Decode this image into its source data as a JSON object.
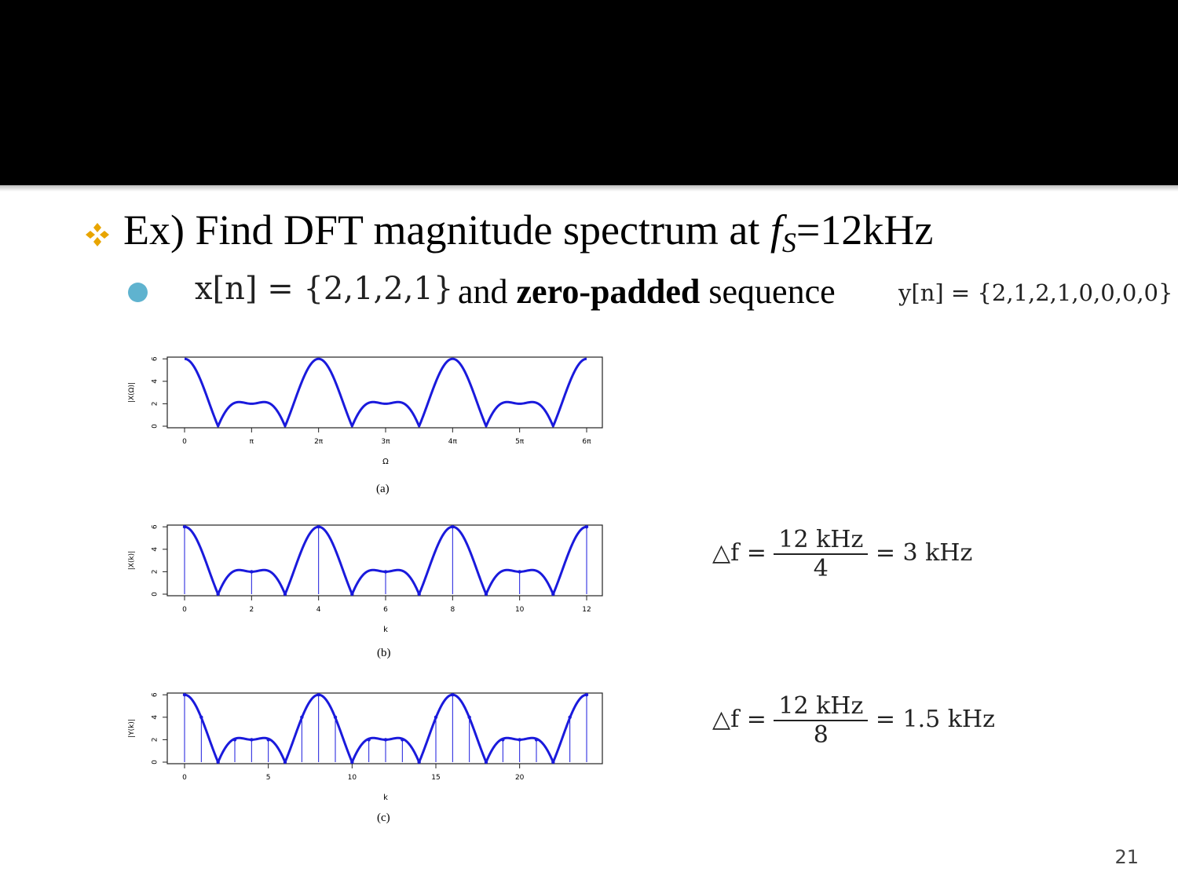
{
  "slide": {
    "page_number": "21",
    "bullet1": {
      "prefix": "Ex) Find DFT magnitude spectrum at ",
      "symbol": "f",
      "subscript": "S",
      "suffix": "=12kHz"
    },
    "bullet2": {
      "x_seq": "x[n] = {2,1,2,1}",
      "and": "and ",
      "bold": "zero-padded",
      "sequence": " sequence",
      "y_seq": "y[n] = {2,1,2,1,0,0,0,0}"
    },
    "eq1": {
      "lhs": "△f =",
      "num": "12 kHz",
      "den": "4",
      "rhs": "= 3 kHz"
    },
    "eq2": {
      "lhs": "△f =",
      "num": "12 kHz",
      "den": "8",
      "rhs": "= 1.5 kHz"
    }
  },
  "colors": {
    "curve": "#1a1adc",
    "accent_diamond": "#e8a500",
    "bullet_circle": "#5fb3cf"
  },
  "chart_data": [
    {
      "type": "line",
      "caption": "(a)",
      "xlabel": "Ω",
      "ylabel": "|X(Ω)|",
      "xticks": [
        "0",
        "π",
        "2π",
        "3π",
        "4π",
        "5π",
        "6π"
      ],
      "yticks": [
        "0",
        "2",
        "4",
        "6"
      ],
      "ylim": [
        0,
        6
      ],
      "xlim_periods": 3,
      "signal": [
        2,
        1,
        2,
        1
      ],
      "N": 4,
      "stems": false
    },
    {
      "type": "line",
      "caption": "(b)",
      "xlabel": "k",
      "ylabel": "|X(k)|",
      "xticks": [
        "0",
        "2",
        "4",
        "6",
        "8",
        "10",
        "12"
      ],
      "yticks": [
        "0",
        "2",
        "4",
        "6"
      ],
      "ylim": [
        0,
        6
      ],
      "k_max": 12,
      "N": 4,
      "signal": [
        2,
        1,
        2,
        1
      ],
      "stems": true,
      "values": [
        6,
        0,
        2,
        0,
        6,
        0,
        2,
        0,
        6,
        0,
        2,
        0,
        6
      ]
    },
    {
      "type": "line",
      "caption": "(c)",
      "xlabel": "k",
      "ylabel": "|Y(k)|",
      "xticks": [
        "0",
        "5",
        "10",
        "15",
        "20"
      ],
      "yticks": [
        "0",
        "2",
        "4",
        "6"
      ],
      "ylim": [
        0,
        6
      ],
      "k_max": 24,
      "N": 8,
      "signal": [
        2,
        1,
        2,
        1,
        0,
        0,
        0,
        0
      ],
      "stems": true,
      "values": [
        6,
        4,
        0,
        2,
        2,
        2,
        0,
        4,
        6,
        4,
        0,
        2,
        2,
        2,
        0,
        4,
        6,
        4,
        0,
        2,
        2,
        2,
        0,
        4,
        6
      ]
    }
  ]
}
